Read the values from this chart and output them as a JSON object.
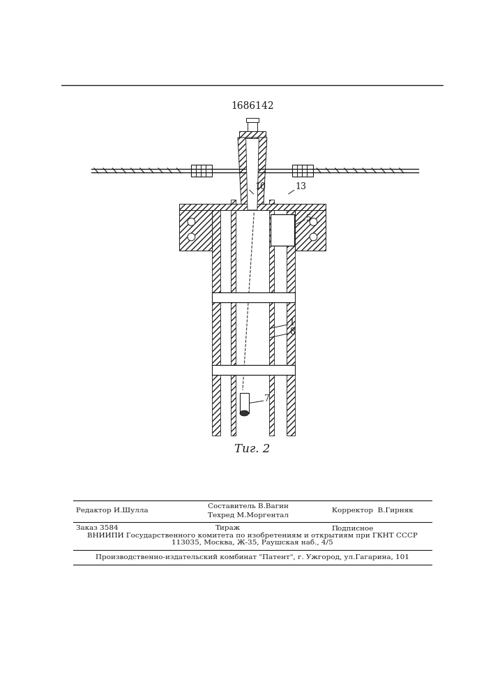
{
  "patent_number": "1686142",
  "bg_color": "#ffffff",
  "line_color": "#1a1a1a",
  "footer": {
    "editor": "Редактор И.Шулла",
    "composer": "Составитель В.Вагин",
    "tech": "Техред М.Моргентал",
    "corrector": "Корректор  В.Гирняк",
    "order": "Заказ 3584",
    "tirazh": "Тираж",
    "podpisnoe": "Подписное",
    "vniip": "ВНИИПИ Государственного комитета по изобретениям и открытиям при ГКНТ СССР",
    "address": "113035, Москва, Ж-35, Раушская наб., 4/5",
    "proizv": "Производственно-издательский комбинат \"Патент\", г. Ужгород, ул.Гагарина, 101"
  }
}
